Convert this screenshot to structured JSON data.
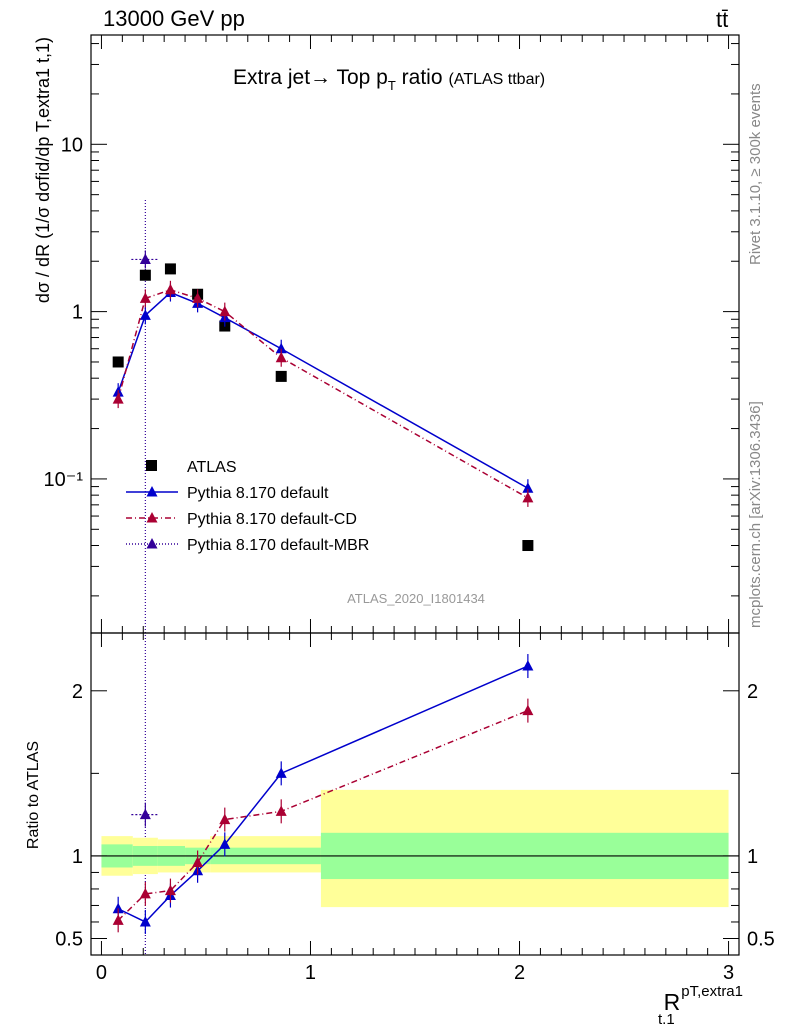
{
  "header": {
    "left": "13000 GeV pp",
    "right": "tt̄"
  },
  "title_main": "Extra jet→ Top p",
  "title_sub": "T",
  "title_rest": " ratio",
  "title_small": "(ATLAS ttbar)",
  "analysis_id": "ATLAS_2020_I1801434",
  "side_label_top": "Rivet 3.1.10, ≥ 300k events",
  "side_label_bottom": "mcplots.cern.ch [arXiv:1306.3436]",
  "ylabel_main": "dσ / dR (1/σ dσfid/dp T,extra1 t,1)",
  "ylabel_ratio": "Ratio to ATLAS",
  "xlabel": "R",
  "xlabel_sup": "pT,extra1",
  "xlabel_sub": "t,1",
  "colors": {
    "atlas": "#000000",
    "default": "#0000cc",
    "cd": "#aa0033",
    "mbr": "#330099",
    "band_green": "#99ff99",
    "band_yellow": "#ffff99"
  },
  "chart_data": [
    {
      "type": "line",
      "panel": "main",
      "yscale": "log",
      "xlim": [
        -0.05,
        3.05
      ],
      "ylim": [
        0.012,
        45
      ],
      "xticks": [
        0,
        1,
        2,
        3
      ],
      "yticks": [
        {
          "value": 0.1,
          "label": "10⁻¹"
        },
        {
          "value": 1,
          "label": "1"
        },
        {
          "value": 10,
          "label": "10"
        }
      ],
      "legend": [
        "ATLAS",
        "Pythia 8.170 default",
        "Pythia 8.170 default-CD",
        "Pythia 8.170 default-MBR"
      ],
      "legend_position": "bottom-left",
      "series": [
        {
          "name": "ATLAS",
          "style": "square",
          "x": [
            0.08,
            0.21,
            0.33,
            0.46,
            0.59,
            0.86,
            2.04
          ],
          "y": [
            0.5,
            1.65,
            1.8,
            1.27,
            0.82,
            0.41,
            0.04
          ]
        },
        {
          "name": "Pythia 8.170 default",
          "style": "solid",
          "x": [
            0.08,
            0.21,
            0.33,
            0.46,
            0.59,
            0.86,
            2.04
          ],
          "y": [
            0.33,
            0.95,
            1.3,
            1.12,
            0.92,
            0.6,
            0.088
          ]
        },
        {
          "name": "Pythia 8.170 default-CD",
          "style": "dashdot",
          "x": [
            0.08,
            0.21,
            0.33,
            0.46,
            0.59,
            0.86,
            2.04
          ],
          "y": [
            0.3,
            1.2,
            1.35,
            1.2,
            1.0,
            0.53,
            0.077
          ]
        },
        {
          "name": "Pythia 8.170 default-MBR",
          "style": "dotted",
          "x": [
            0.21
          ],
          "y": [
            2.05
          ]
        }
      ]
    },
    {
      "type": "line",
      "panel": "ratio",
      "xlim": [
        -0.05,
        3.05
      ],
      "ylim": [
        0.4,
        2.35
      ],
      "xticks": [
        0,
        1,
        2,
        3
      ],
      "yticks": [
        {
          "value": 0.5,
          "label": "0.5"
        },
        {
          "value": 1,
          "label": "1"
        },
        {
          "value": 2,
          "label": "2"
        }
      ],
      "bands": [
        {
          "x0": 0.0,
          "x1": 0.15,
          "green": [
            0.93,
            1.07
          ],
          "yellow": [
            0.88,
            1.12
          ]
        },
        {
          "x0": 0.15,
          "x1": 0.27,
          "green": [
            0.94,
            1.06
          ],
          "yellow": [
            0.89,
            1.11
          ]
        },
        {
          "x0": 0.27,
          "x1": 0.4,
          "green": [
            0.94,
            1.06
          ],
          "yellow": [
            0.9,
            1.1
          ]
        },
        {
          "x0": 0.4,
          "x1": 0.52,
          "green": [
            0.95,
            1.05
          ],
          "yellow": [
            0.9,
            1.1
          ]
        },
        {
          "x0": 0.52,
          "x1": 1.05,
          "green": [
            0.95,
            1.05
          ],
          "yellow": [
            0.9,
            1.12
          ]
        },
        {
          "x0": 1.05,
          "x1": 3.0,
          "green": [
            0.86,
            1.14
          ],
          "yellow": [
            0.69,
            1.4
          ]
        }
      ],
      "series": [
        {
          "name": "Pythia 8.170 default",
          "x": [
            0.08,
            0.21,
            0.33,
            0.46,
            0.59,
            0.86,
            2.04
          ],
          "y": [
            0.68,
            0.6,
            0.76,
            0.91,
            1.07,
            1.5,
            2.15
          ]
        },
        {
          "name": "Pythia 8.170 default-CD",
          "x": [
            0.08,
            0.21,
            0.33,
            0.46,
            0.59,
            0.86,
            2.04
          ],
          "y": [
            0.61,
            0.77,
            0.79,
            0.96,
            1.22,
            1.27,
            1.88
          ]
        },
        {
          "name": "Pythia 8.170 default-MBR",
          "x": [
            0.21
          ],
          "y": [
            1.25
          ]
        }
      ]
    }
  ]
}
